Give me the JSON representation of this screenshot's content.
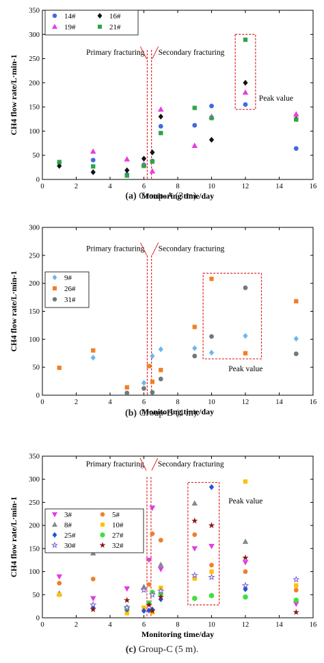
{
  "panels": [
    {
      "caption": {
        "letter": "(a)",
        "text": "Group-A (3 m)."
      },
      "chart_data": {
        "type": "scatter",
        "xlabel": "Monitoring time/day",
        "ylabel": "CH4 flow rate/L·min-1",
        "xlim": [
          0,
          16
        ],
        "ylim": [
          0,
          350
        ],
        "xticks": [
          0,
          2,
          4,
          6,
          8,
          10,
          12,
          14,
          16
        ],
        "yticks": [
          0,
          50,
          100,
          150,
          200,
          250,
          300,
          350
        ],
        "grid": false,
        "legend_position": "top-left",
        "annotations": [
          {
            "text": "Primary fracturing",
            "x": 6.3,
            "y": 258
          },
          {
            "text": "Secondary fracturing",
            "x": 6.6,
            "y": 258
          },
          {
            "text": "Peak value",
            "x": 12.8,
            "y": 163
          }
        ],
        "series": [
          {
            "name": "14#",
            "marker": "circle",
            "color": "#4169e1",
            "x": [
              1,
              3,
              5,
              6,
              6.5,
              7,
              9,
              10,
              12,
              15
            ],
            "y": [
              35,
              40,
              10,
              30,
              38,
              110,
              112,
              152,
              155,
              64
            ]
          },
          {
            "name": "16#",
            "marker": "diamond",
            "color": "#111111",
            "x": [
              1,
              3,
              5,
              6,
              6.5,
              7,
              10,
              12,
              15
            ],
            "y": [
              28,
              15,
              19,
              43,
              56,
              130,
              82,
              200,
              125
            ]
          },
          {
            "name": "19#",
            "marker": "triangle-up",
            "color": "#e83ce0",
            "x": [
              3,
              5,
              6,
              6.5,
              7,
              9,
              10,
              12,
              15
            ],
            "y": [
              58,
              42,
              31,
              17,
              145,
              70,
              130,
              180,
              135
            ]
          },
          {
            "name": "21#",
            "marker": "square",
            "color": "#2ea44a",
            "x": [
              1,
              3,
              5,
              6,
              6.5,
              7,
              9,
              10,
              12,
              15
            ],
            "y": [
              36,
              27,
              8,
              28,
              37,
              96,
              148,
              127,
              289,
              124
            ]
          }
        ]
      }
    },
    {
      "caption": {
        "letter": "(b)",
        "text": "Group-B (4 m)."
      },
      "chart_data": {
        "type": "scatter",
        "xlabel": "Monitoring time/day",
        "ylabel": "CH4 flow rate/L·min-1",
        "xlim": [
          0,
          16
        ],
        "ylim": [
          0,
          300
        ],
        "xticks": [
          0,
          2,
          4,
          6,
          8,
          10,
          12,
          14,
          16
        ],
        "yticks": [
          0,
          50,
          100,
          150,
          200,
          250,
          300
        ],
        "grid": false,
        "legend_position": "middle-left",
        "annotations": [
          {
            "text": "Primary fracturing",
            "x": 6.3,
            "y": 258
          },
          {
            "text": "Secondary fracturing",
            "x": 6.6,
            "y": 258
          },
          {
            "text": "Peak value",
            "x": 11,
            "y": 43
          }
        ],
        "series": [
          {
            "name": "9#",
            "marker": "diamond",
            "color": "#6ab7f0",
            "x": [
              3,
              6,
              6.5,
              7,
              9,
              10,
              12,
              15
            ],
            "y": [
              67,
              22,
              70,
              82,
              84,
              76,
              106,
              101
            ]
          },
          {
            "name": "26#",
            "marker": "square",
            "color": "#f07f2a",
            "x": [
              1,
              3,
              5,
              6.3,
              6.5,
              7,
              9,
              10,
              12,
              15
            ],
            "y": [
              49,
              80,
              14,
              52,
              24,
              45,
              122,
              208,
              75,
              168
            ]
          },
          {
            "name": "31#",
            "marker": "circle",
            "color": "#6e7b7b",
            "x": [
              5,
              6,
              6.5,
              7,
              9,
              10,
              12,
              15
            ],
            "y": [
              4,
              12,
              5,
              29,
              70,
              105,
              192,
              74
            ]
          }
        ]
      }
    },
    {
      "caption": {
        "letter": "(c)",
        "text": "Group-C (5 m)."
      },
      "chart_data": {
        "type": "scatter",
        "xlabel": "Monitoring time/day",
        "ylabel": "CH4 flow rate/L·min-1",
        "xlim": [
          0,
          16
        ],
        "ylim": [
          0,
          350
        ],
        "xticks": [
          0,
          2,
          4,
          6,
          8,
          10,
          12,
          14,
          16
        ],
        "yticks": [
          0,
          50,
          100,
          150,
          200,
          250,
          300,
          350
        ],
        "grid": false,
        "legend_position": "middle-left",
        "annotations": [
          {
            "text": "Primary fracturing",
            "x": 6.0,
            "y": 328
          },
          {
            "text": "Secondary fracturing",
            "x": 6.6,
            "y": 328
          },
          {
            "text": "Peak value",
            "x": 11,
            "y": 248
          }
        ],
        "series": [
          {
            "name": "3#",
            "marker": "triangle-down",
            "color": "#e23ce0",
            "x": [
              1,
              3,
              5,
              6.3,
              6.5,
              7,
              9,
              10,
              12,
              15
            ],
            "y": [
              89,
              42,
              63,
              125,
              238,
              105,
              150,
              155,
              120,
              30
            ]
          },
          {
            "name": "5#",
            "marker": "circle",
            "color": "#f07f2a",
            "x": [
              1,
              3,
              5,
              6.3,
              6.5,
              7,
              9,
              10,
              12,
              15
            ],
            "y": [
              75,
              84,
              15,
              72,
              182,
              168,
              180,
              114,
              100,
              60
            ]
          },
          {
            "name": "8#",
            "marker": "triangle-up",
            "color": "#7f8c8c",
            "x": [
              1,
              3,
              6,
              7,
              9,
              12
            ],
            "y": [
              53,
              140,
              67,
              115,
              248,
              165
            ]
          },
          {
            "name": "10#",
            "marker": "square",
            "color": "#ffc000",
            "x": [
              1,
              5,
              6,
              6.5,
              7,
              9,
              10,
              12,
              15
            ],
            "y": [
              50,
              10,
              22,
              12,
              65,
              85,
              100,
              295,
              70
            ]
          },
          {
            "name": "25#",
            "marker": "diamond",
            "color": "#1f54d8",
            "x": [
              3,
              5,
              6,
              6.3,
              6.5,
              7,
              10,
              12
            ],
            "y": [
              22,
              18,
              15,
              16,
              18,
              40,
              283,
              62
            ]
          },
          {
            "name": "27#",
            "marker": "hexagon",
            "color": "#3ee03e",
            "x": [
              5,
              6.3,
              6.5,
              7,
              9,
              10,
              12,
              15
            ],
            "y": [
              22,
              32,
              55,
              52,
              42,
              48,
              45,
              38
            ]
          },
          {
            "name": "30#",
            "marker": "star-open",
            "color": "#7a60cf",
            "x": [
              3,
              5,
              6,
              6.5,
              7,
              9,
              10,
              12,
              15
            ],
            "y": [
              28,
              22,
              60,
              50,
              58,
              92,
              88,
              70,
              83
            ]
          },
          {
            "name": "32#",
            "marker": "star",
            "color": "#8b1a1a",
            "x": [
              3,
              5,
              6.3,
              6.5,
              7,
              9,
              10,
              12,
              15
            ],
            "y": [
              18,
              38,
              28,
              15,
              45,
              210,
              200,
              130,
              12
            ]
          }
        ]
      }
    }
  ]
}
